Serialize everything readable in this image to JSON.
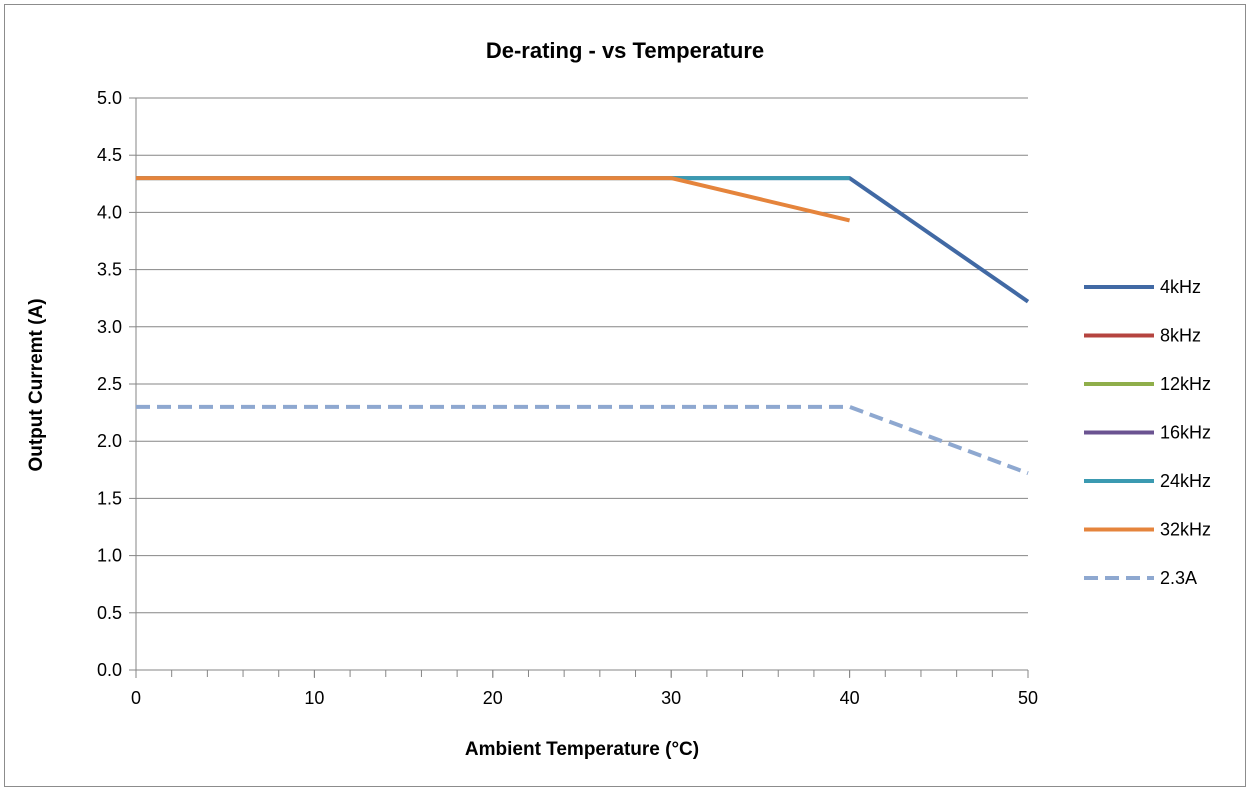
{
  "chart_data": {
    "type": "line",
    "title": "De-rating - vs Temperature",
    "xlabel": "Ambient Temperature (°C)",
    "ylabel": "Output Curremt (A)",
    "xlim": [
      0,
      50
    ],
    "ylim": [
      0,
      5
    ],
    "x_ticks": [
      "0",
      "10",
      "20",
      "30",
      "40",
      "50"
    ],
    "y_ticks": [
      "0.0",
      "0.5",
      "1.0",
      "1.5",
      "2.0",
      "2.5",
      "3.0",
      "3.5",
      "4.0",
      "4.5",
      "5.0"
    ],
    "grid": "horizontal",
    "legend_position": "right",
    "series": [
      {
        "name": "4kHz",
        "color": "#4169a4",
        "dash": false,
        "points": [
          [
            0,
            4.3
          ],
          [
            40,
            4.3
          ],
          [
            50,
            3.22
          ]
        ]
      },
      {
        "name": "8kHz",
        "color": "#b5443f",
        "dash": false,
        "points": []
      },
      {
        "name": "12kHz",
        "color": "#8fae4a",
        "dash": false,
        "points": []
      },
      {
        "name": "16kHz",
        "color": "#6b5391",
        "dash": false,
        "points": []
      },
      {
        "name": "24kHz",
        "color": "#3b9ab1",
        "dash": false,
        "points": [
          [
            0,
            4.3
          ],
          [
            40,
            4.3
          ]
        ]
      },
      {
        "name": "32kHz",
        "color": "#e5843c",
        "dash": false,
        "points": [
          [
            0,
            4.3
          ],
          [
            30,
            4.3
          ],
          [
            40,
            3.93
          ]
        ]
      },
      {
        "name": "2.3A",
        "color": "#8ea8d0",
        "dash": true,
        "points": [
          [
            0,
            2.3
          ],
          [
            40,
            2.3
          ],
          [
            50,
            1.72
          ]
        ]
      }
    ]
  }
}
